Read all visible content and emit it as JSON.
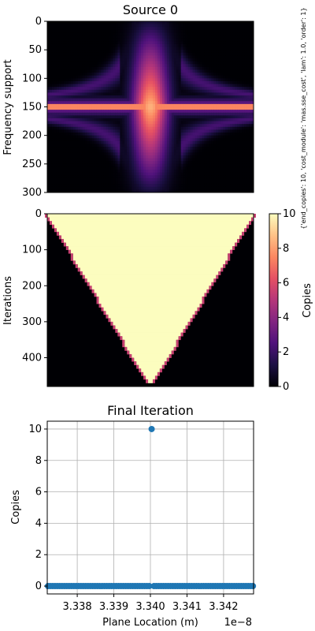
{
  "side_note": "{'end_copies': 10, 'cost_module': 'mas.sse_cost', 'lam': 1.0, 'order': 1}",
  "colors": {
    "magma_stops": [
      "#000004",
      "#1c1044",
      "#4f127b",
      "#812581",
      "#b5367a",
      "#e55064",
      "#fb8761",
      "#fec287",
      "#fcfdbf"
    ],
    "scatter": "#1f77b4",
    "grid": "#b0b0b0"
  },
  "chart_data": [
    {
      "type": "heatmap",
      "title": "Source 0",
      "ylabel": "Frequency support",
      "xlabel": "",
      "ylim": [
        300,
        0
      ],
      "yticks": [
        0,
        50,
        100,
        150,
        200,
        250,
        300
      ],
      "description_values": {
        "n_columns": 88,
        "n_rows": 300,
        "horizontal_band_center_row": 150,
        "vertical_band_center_col": 44,
        "colormap": "magma"
      }
    },
    {
      "type": "heatmap",
      "title": "",
      "ylabel": "Iterations",
      "xlabel": "",
      "ylim": [
        480,
        0
      ],
      "yticks": [
        0,
        100,
        200,
        300,
        400
      ],
      "colormap": "magma",
      "value_range": [
        0,
        10
      ],
      "colorbar": {
        "label": "Copies",
        "ticks": [
          0,
          2,
          4,
          6,
          8,
          10
        ]
      },
      "region": {
        "shape": "triangle",
        "top_row": 0,
        "bottom_row": 480,
        "top_left_col": 0,
        "top_right_col": 88,
        "apex_col": 44,
        "inside_value": 10,
        "outside_value": 0
      }
    },
    {
      "type": "scatter",
      "title": "Final Iteration",
      "xlabel": "Plane Location (m)",
      "ylabel": "Copies",
      "x_offset_label": "1e−8",
      "xlim": [
        3.33718,
        3.34282
      ],
      "ylim": [
        -0.5,
        10.5
      ],
      "xticks": [
        3.338,
        3.339,
        3.34,
        3.341,
        3.342
      ],
      "xtick_labels": [
        "3.338",
        "3.339",
        "3.340",
        "3.341",
        "3.342"
      ],
      "yticks": [
        0,
        2,
        4,
        6,
        8,
        10
      ],
      "ytick_labels": [
        "0",
        "2",
        "4",
        "6",
        "8",
        "10"
      ],
      "grid": true,
      "series": [
        {
          "x_start": 3.3372,
          "x_step": 6.44e-05,
          "count": 88,
          "values_default": 0,
          "peak_index": 44,
          "peak_value": 10
        }
      ]
    }
  ]
}
